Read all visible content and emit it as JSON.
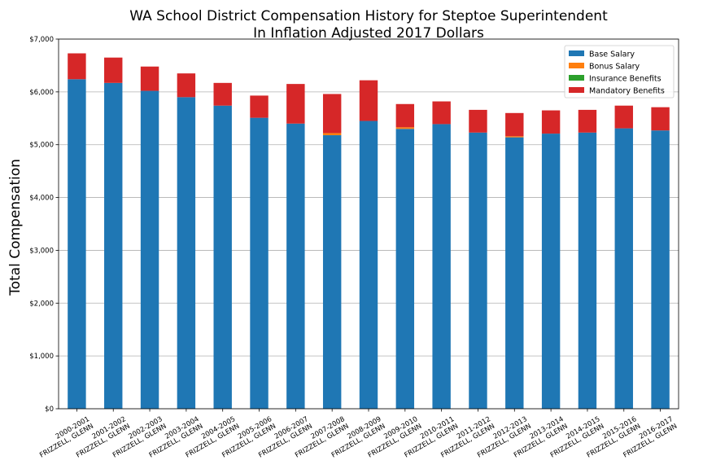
{
  "chart_data": {
    "type": "bar",
    "stacked": true,
    "title_line1": "WA School District Compensation History for Steptoe Superintendent",
    "title_line2": "In Inflation Adjusted 2017 Dollars",
    "xlabel": "",
    "ylabel": "Total Compensation",
    "ylim": [
      0,
      7000
    ],
    "yticks": [
      "$0",
      "$1,000",
      "$2,000",
      "$3,000",
      "$4,000",
      "$5,000",
      "$6,000",
      "$7,000"
    ],
    "ytick_values": [
      0,
      1000,
      2000,
      3000,
      4000,
      5000,
      6000,
      7000
    ],
    "grid": "horizontal",
    "legend_position": "top-right",
    "categories": [
      {
        "year": "2000-2001",
        "name": "FRIZZELL, GLENN"
      },
      {
        "year": "2001-2002",
        "name": "FRIZZELL, GLENN"
      },
      {
        "year": "2002-2003",
        "name": "FRIZZELL, GLENN"
      },
      {
        "year": "2003-2004",
        "name": "FRIZZELL, GLENN"
      },
      {
        "year": "2004-2005",
        "name": "FRIZZELL, GLENN"
      },
      {
        "year": "2005-2006",
        "name": "FRIZZELL, GLENN"
      },
      {
        "year": "2006-2007",
        "name": "FRIZZELL, GLENN"
      },
      {
        "year": "2007-2008",
        "name": "FRIZZELL, GLENN"
      },
      {
        "year": "2008-2009",
        "name": "FRIZZELL, GLENN"
      },
      {
        "year": "2009-2010",
        "name": "FRIZZELL, GLENN"
      },
      {
        "year": "2010-2011",
        "name": "FRIZZELL, GLENN"
      },
      {
        "year": "2011-2012",
        "name": "FRIZZELL, GLENN"
      },
      {
        "year": "2012-2013",
        "name": "FRIZZELL, GLENN"
      },
      {
        "year": "2013-2014",
        "name": "FRIZZELL, GLENN"
      },
      {
        "year": "2014-2015",
        "name": "FRIZZELL, GLENN"
      },
      {
        "year": "2015-2016",
        "name": "FRIZZELL, GLENN"
      },
      {
        "year": "2016-2017",
        "name": "FRIZZELL, GLENN"
      }
    ],
    "series": [
      {
        "name": "Base Salary",
        "color": "#1f77b4",
        "values": [
          6240,
          6170,
          6020,
          5900,
          5740,
          5510,
          5400,
          5180,
          5450,
          5300,
          5390,
          5230,
          5140,
          5210,
          5230,
          5310,
          5270
        ]
      },
      {
        "name": "Bonus Salary",
        "color": "#ff7f0e",
        "values": [
          0,
          0,
          0,
          0,
          0,
          0,
          0,
          40,
          0,
          30,
          0,
          0,
          20,
          0,
          0,
          0,
          0
        ]
      },
      {
        "name": "Insurance Benefits",
        "color": "#2ca02c",
        "values": [
          0,
          0,
          0,
          0,
          0,
          0,
          0,
          0,
          0,
          0,
          0,
          0,
          0,
          0,
          0,
          0,
          0
        ]
      },
      {
        "name": "Mandatory Benefits",
        "color": "#d62728",
        "values": [
          490,
          480,
          460,
          450,
          430,
          420,
          750,
          740,
          770,
          440,
          430,
          430,
          440,
          440,
          430,
          430,
          440
        ]
      }
    ]
  }
}
